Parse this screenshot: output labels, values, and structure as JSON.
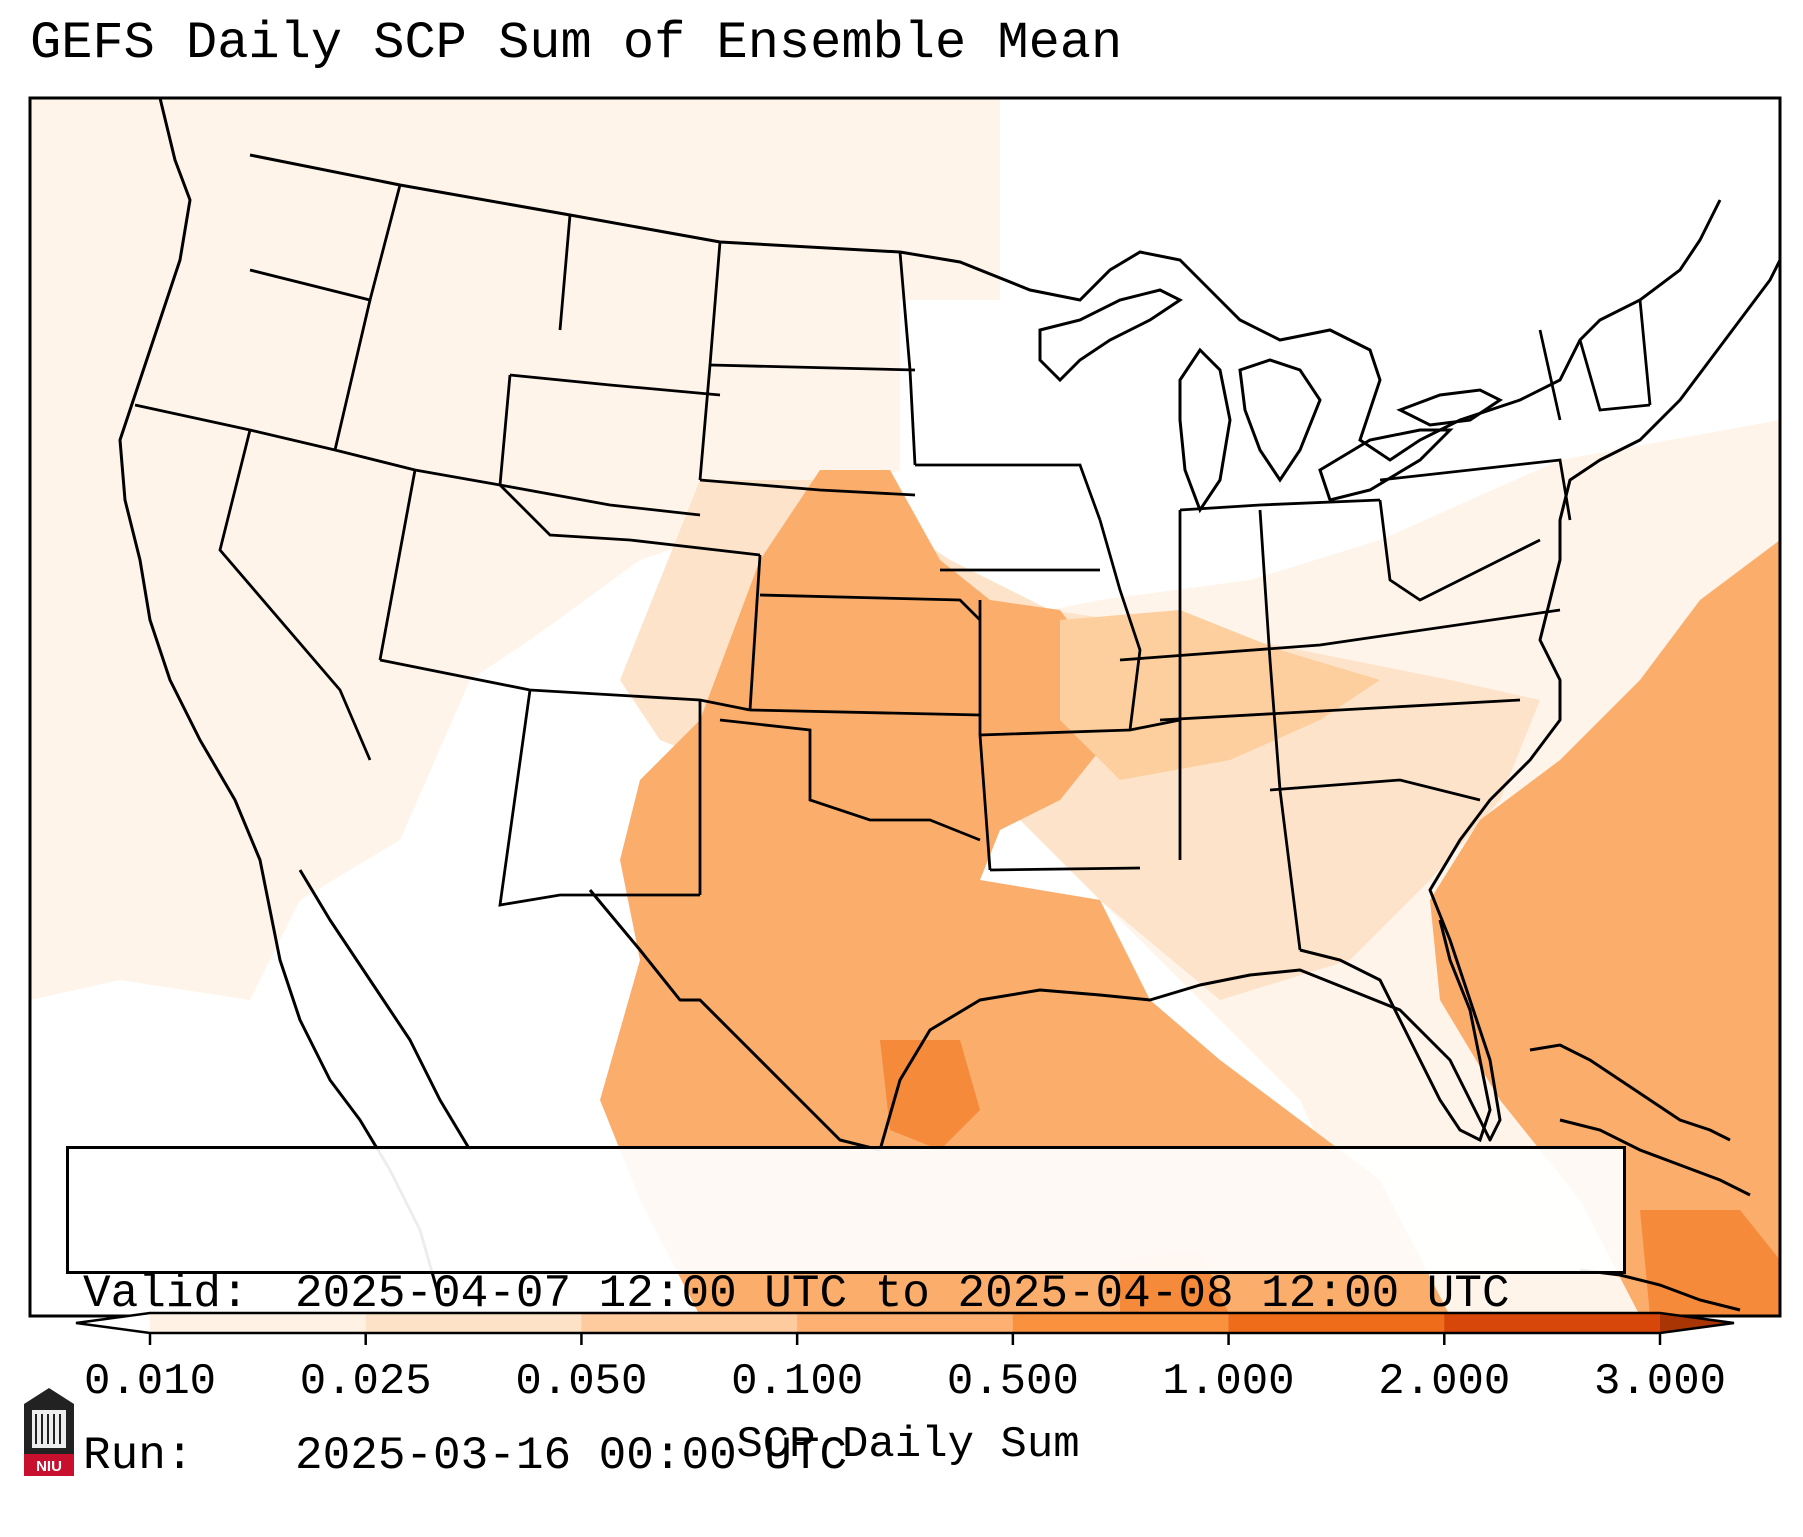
{
  "title": "GEFS Daily SCP Sum of Ensemble Mean",
  "info": {
    "valid_label": "Valid:",
    "valid_value": "2025-04-07 12:00 UTC to 2025-04-08 12:00 UTC",
    "run_label": "Run:",
    "run_value": "2025-03-16 00:00 UTC"
  },
  "colorbar": {
    "title": "SCP Daily Sum",
    "ticks": [
      "0.010",
      "0.025",
      "0.050",
      "0.100",
      "0.500",
      "1.000",
      "2.000",
      "3.000"
    ],
    "colors": [
      "#fff1e4",
      "#fde2c7",
      "#fdcb9d",
      "#fdb071",
      "#f9913f",
      "#ef6c1a",
      "#d8470a",
      "#a83503"
    ],
    "extend": "both"
  },
  "map": {
    "region": "Continental United States",
    "field_colors": {
      "faint": "#fff4ea",
      "light": "#fde3c9",
      "mid": "#fdcf9f",
      "main": "#fbad6c",
      "strong": "#f58a3b"
    }
  },
  "logo": {
    "text": "NIU",
    "color": "#c8102e"
  }
}
